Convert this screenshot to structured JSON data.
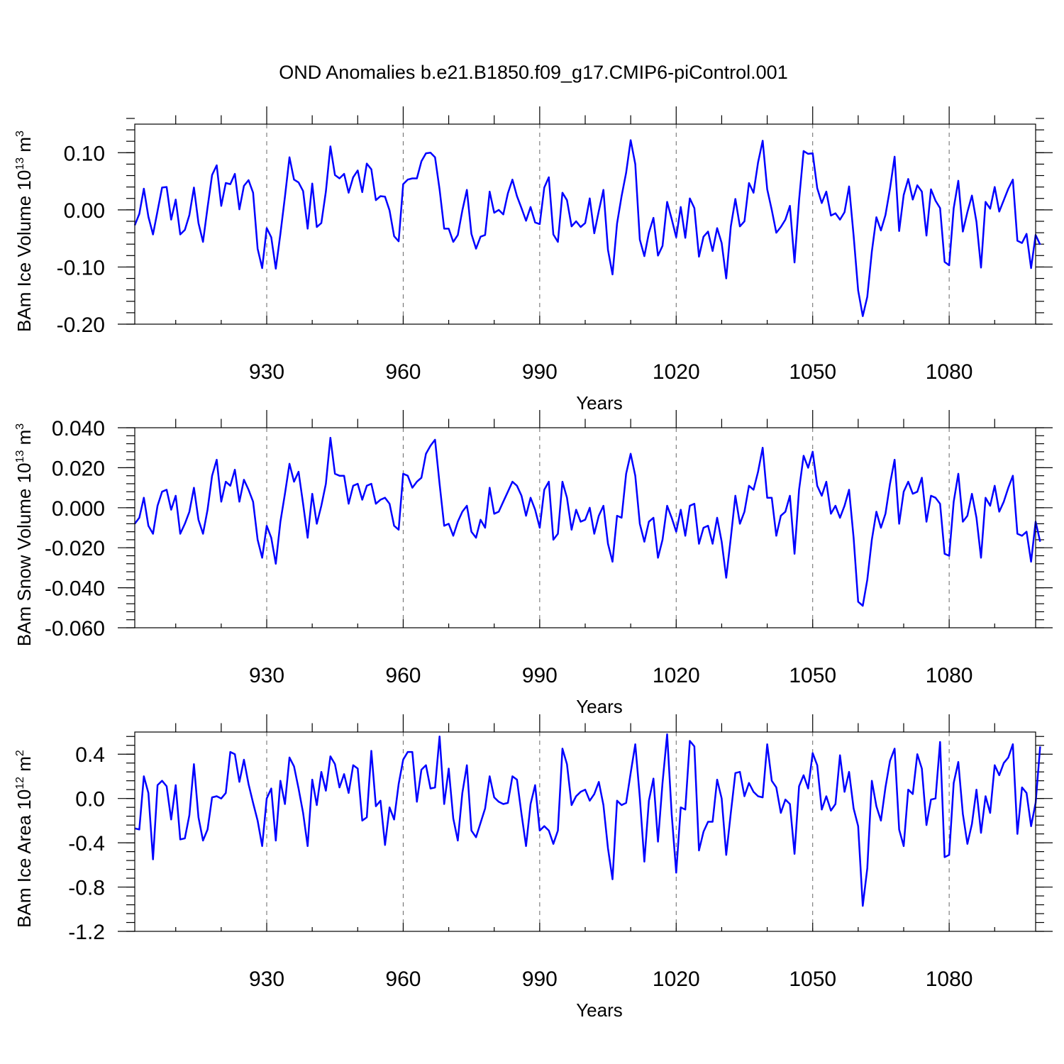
{
  "chart_data": [
    {
      "type": "line",
      "title": "OND Anomalies b.e21.B1850.f09_g17.CMIP6-piControl.001",
      "ylabel_main": "BAm Ice Volume 10",
      "ylabel_sup": "13",
      "ylabel_unit": " m",
      "ylabel_unit_sup": "3",
      "xlabel": "Years",
      "color": "#0000ff",
      "xlim": [
        901,
        1099
      ],
      "ylim": [
        -0.2,
        0.15
      ],
      "yticks": [
        -0.2,
        -0.1,
        0.0,
        0.1
      ],
      "ytick_labels": [
        "-0.20",
        "-0.10",
        "0.00",
        "0.10"
      ],
      "yminor_step": 0.02,
      "xticks": [
        930,
        960,
        990,
        1020,
        1050,
        1080
      ],
      "xtick_labels": [
        "930",
        "960",
        "990",
        "1020",
        "1050",
        "1080"
      ],
      "x_start": 901,
      "values": [
        -0.027,
        -0.007,
        0.037,
        -0.012,
        -0.043,
        -0.002,
        0.039,
        0.04,
        -0.017,
        0.018,
        -0.043,
        -0.035,
        -0.009,
        0.039,
        -0.023,
        -0.056,
        0.004,
        0.061,
        0.078,
        0.007,
        0.047,
        0.045,
        0.063,
        0.001,
        0.042,
        0.052,
        0.03,
        -0.068,
        -0.102,
        -0.032,
        -0.048,
        -0.103,
        -0.042,
        0.023,
        0.092,
        0.053,
        0.048,
        0.033,
        -0.033,
        0.046,
        -0.03,
        -0.023,
        0.032,
        0.111,
        0.061,
        0.055,
        0.063,
        0.03,
        0.057,
        0.069,
        0.031,
        0.081,
        0.071,
        0.017,
        0.024,
        0.023,
        -0.001,
        -0.046,
        -0.055,
        0.045,
        0.053,
        0.055,
        0.055,
        0.085,
        0.099,
        0.1,
        0.092,
        0.036,
        -0.033,
        -0.033,
        -0.056,
        -0.044,
        -0.001,
        0.035,
        -0.042,
        -0.068,
        -0.047,
        -0.044,
        0.032,
        -0.005,
        0.0,
        -0.008,
        0.029,
        0.053,
        0.024,
        0.003,
        -0.019,
        0.005,
        -0.022,
        -0.025,
        0.039,
        0.057,
        -0.043,
        -0.056,
        0.03,
        0.017,
        -0.029,
        -0.02,
        -0.03,
        -0.023,
        0.02,
        -0.041,
        -0.002,
        0.035,
        -0.07,
        -0.113,
        -0.024,
        0.024,
        0.065,
        0.122,
        0.08,
        -0.052,
        -0.081,
        -0.04,
        -0.014,
        -0.08,
        -0.063,
        0.014,
        -0.016,
        -0.048,
        0.005,
        -0.049,
        0.02,
        0.003,
        -0.082,
        -0.047,
        -0.038,
        -0.072,
        -0.032,
        -0.058,
        -0.12,
        -0.029,
        0.019,
        -0.029,
        -0.02,
        0.047,
        0.03,
        0.083,
        0.121,
        0.036,
        0.0,
        -0.04,
        -0.03,
        -0.017,
        0.007,
        -0.092,
        0.017,
        0.103,
        0.098,
        0.099,
        0.038,
        0.012,
        0.032,
        -0.01,
        -0.006,
        -0.017,
        -0.004,
        0.041,
        -0.045,
        -0.141,
        -0.186,
        -0.152,
        -0.073,
        -0.013,
        -0.036,
        -0.009,
        0.037,
        0.093,
        -0.037,
        0.026,
        0.054,
        0.018,
        0.043,
        0.032,
        -0.045,
        0.036,
        0.016,
        0.003,
        -0.091,
        -0.097,
        0.003,
        0.051,
        -0.038,
        -0.004,
        0.025,
        -0.021,
        -0.101,
        0.014,
        0.002,
        0.04,
        -0.003,
        0.017,
        0.037,
        0.053,
        -0.054,
        -0.058,
        -0.042,
        -0.102,
        -0.044,
        -0.061
      ]
    },
    {
      "type": "line",
      "ylabel_main": "BAm Snow Volume 10",
      "ylabel_sup": "13",
      "ylabel_unit": " m",
      "ylabel_unit_sup": "3",
      "xlabel": "Years",
      "color": "#0000ff",
      "xlim": [
        901,
        1099
      ],
      "ylim": [
        -0.06,
        0.04
      ],
      "yticks": [
        -0.06,
        -0.04,
        -0.02,
        0.0,
        0.02,
        0.04
      ],
      "ytick_labels": [
        "-0.060",
        "-0.040",
        "-0.020",
        "0.000",
        "0.020",
        "0.040"
      ],
      "yminor_step": 0.004,
      "xticks": [
        930,
        960,
        990,
        1020,
        1050,
        1080
      ],
      "xtick_labels": [
        "930",
        "960",
        "990",
        "1020",
        "1050",
        "1080"
      ],
      "x_start": 901,
      "values": [
        -0.008,
        -0.005,
        0.005,
        -0.009,
        -0.013,
        0.001,
        0.008,
        0.009,
        -0.001,
        0.006,
        -0.013,
        -0.008,
        -0.002,
        0.01,
        -0.006,
        -0.013,
        -0.001,
        0.016,
        0.024,
        0.003,
        0.013,
        0.011,
        0.019,
        0.003,
        0.014,
        0.009,
        0.003,
        -0.016,
        -0.025,
        -0.009,
        -0.015,
        -0.028,
        -0.007,
        0.007,
        0.022,
        0.013,
        0.018,
        0.002,
        -0.015,
        0.007,
        -0.008,
        0.001,
        0.012,
        0.035,
        0.017,
        0.016,
        0.016,
        0.002,
        0.011,
        0.012,
        0.004,
        0.011,
        0.012,
        0.002,
        0.004,
        0.005,
        0.002,
        -0.009,
        -0.011,
        0.017,
        0.016,
        0.01,
        0.013,
        0.015,
        0.027,
        0.031,
        0.034,
        0.012,
        -0.009,
        -0.008,
        -0.014,
        -0.007,
        -0.002,
        0.001,
        -0.012,
        -0.015,
        -0.006,
        -0.01,
        0.01,
        -0.003,
        -0.002,
        0.003,
        0.008,
        0.013,
        0.011,
        0.006,
        -0.004,
        0.005,
        -0.001,
        -0.01,
        0.009,
        0.013,
        -0.016,
        -0.013,
        0.013,
        0.005,
        -0.011,
        -0.001,
        -0.007,
        -0.006,
        0.0,
        -0.013,
        -0.004,
        0.001,
        -0.018,
        -0.027,
        -0.004,
        -0.005,
        0.017,
        0.027,
        0.016,
        -0.008,
        -0.017,
        -0.007,
        -0.005,
        -0.025,
        -0.016,
        0.001,
        -0.005,
        -0.012,
        -0.001,
        -0.014,
        0.001,
        0.002,
        -0.018,
        -0.01,
        -0.009,
        -0.018,
        -0.005,
        -0.017,
        -0.035,
        -0.015,
        0.006,
        -0.008,
        -0.002,
        0.011,
        0.009,
        0.018,
        0.03,
        0.005,
        0.005,
        -0.014,
        -0.004,
        -0.002,
        0.006,
        -0.023,
        0.009,
        0.026,
        0.02,
        0.028,
        0.011,
        0.006,
        0.013,
        -0.003,
        0.001,
        -0.005,
        0.001,
        0.009,
        -0.015,
        -0.047,
        -0.049,
        -0.036,
        -0.016,
        -0.002,
        -0.01,
        -0.003,
        0.012,
        0.024,
        -0.008,
        0.008,
        0.013,
        0.007,
        0.008,
        0.015,
        -0.007,
        0.006,
        0.005,
        0.002,
        -0.023,
        -0.024,
        0.003,
        0.017,
        -0.007,
        -0.004,
        0.007,
        -0.005,
        -0.025,
        0.005,
        0.001,
        0.011,
        -0.002,
        0.003,
        0.01,
        0.016,
        -0.013,
        -0.014,
        -0.012,
        -0.027,
        -0.007,
        -0.017
      ]
    },
    {
      "type": "line",
      "ylabel_main": "BAm Ice Area 10",
      "ylabel_sup": "12",
      "ylabel_unit": " m",
      "ylabel_unit_sup": "2",
      "xlabel": "Years",
      "color": "#0000ff",
      "xlim": [
        901,
        1099
      ],
      "ylim": [
        -1.2,
        0.6
      ],
      "yticks": [
        -1.2,
        -0.8,
        -0.4,
        0.0,
        0.4
      ],
      "ytick_labels": [
        "-1.2",
        "-0.8",
        "-0.4",
        "0.0",
        "0.4"
      ],
      "yminor_step": 0.08,
      "xticks": [
        930,
        960,
        990,
        1020,
        1050,
        1080
      ],
      "xtick_labels": [
        "930",
        "960",
        "990",
        "1020",
        "1050",
        "1080"
      ],
      "x_start": 901,
      "values": [
        -0.27,
        -0.28,
        0.2,
        0.05,
        -0.55,
        0.12,
        0.16,
        0.11,
        -0.19,
        0.12,
        -0.37,
        -0.36,
        -0.15,
        0.31,
        -0.17,
        -0.38,
        -0.28,
        0.01,
        0.02,
        0.0,
        0.05,
        0.42,
        0.4,
        0.15,
        0.35,
        0.13,
        -0.04,
        -0.2,
        -0.43,
        0.0,
        0.09,
        -0.38,
        0.16,
        -0.05,
        0.37,
        0.29,
        0.09,
        -0.13,
        -0.43,
        0.17,
        -0.06,
        0.24,
        0.07,
        0.38,
        0.31,
        0.1,
        0.22,
        0.05,
        0.3,
        0.27,
        -0.2,
        -0.17,
        0.43,
        -0.07,
        -0.02,
        -0.42,
        -0.08,
        -0.19,
        0.13,
        0.35,
        0.42,
        0.42,
        -0.03,
        0.26,
        0.3,
        0.09,
        0.1,
        0.56,
        -0.05,
        0.27,
        -0.18,
        -0.38,
        0.05,
        0.3,
        -0.29,
        -0.35,
        -0.22,
        -0.09,
        0.2,
        0.01,
        -0.03,
        -0.05,
        -0.04,
        0.2,
        0.17,
        -0.14,
        -0.43,
        -0.05,
        0.12,
        -0.29,
        -0.25,
        -0.29,
        -0.41,
        -0.29,
        0.45,
        0.31,
        -0.06,
        0.02,
        0.06,
        0.08,
        -0.02,
        0.04,
        0.15,
        -0.06,
        -0.45,
        -0.73,
        -0.02,
        -0.06,
        -0.04,
        0.23,
        0.49,
        0.01,
        -0.57,
        -0.02,
        0.18,
        -0.39,
        0.14,
        0.58,
        -0.14,
        -0.67,
        -0.08,
        -0.1,
        0.52,
        0.47,
        -0.47,
        -0.3,
        -0.21,
        -0.21,
        0.17,
        0.0,
        -0.51,
        -0.13,
        0.23,
        0.24,
        0.02,
        0.14,
        0.06,
        0.02,
        0.01,
        0.49,
        0.16,
        0.1,
        -0.13,
        -0.01,
        -0.05,
        -0.5,
        0.11,
        0.21,
        0.09,
        0.41,
        0.3,
        -0.1,
        0.02,
        -0.11,
        -0.05,
        0.39,
        0.06,
        0.24,
        -0.09,
        -0.25,
        -0.97,
        -0.63,
        0.16,
        -0.07,
        -0.2,
        0.1,
        0.34,
        0.45,
        -0.28,
        -0.43,
        0.08,
        0.04,
        0.4,
        0.27,
        -0.24,
        -0.01,
        0.0,
        0.51,
        -0.53,
        -0.51,
        0.14,
        0.33,
        -0.14,
        -0.41,
        -0.23,
        0.08,
        -0.31,
        0.02,
        -0.13,
        0.3,
        0.21,
        0.32,
        0.37,
        0.49,
        -0.32,
        0.1,
        0.05,
        -0.25,
        -0.04,
        0.47
      ]
    }
  ]
}
